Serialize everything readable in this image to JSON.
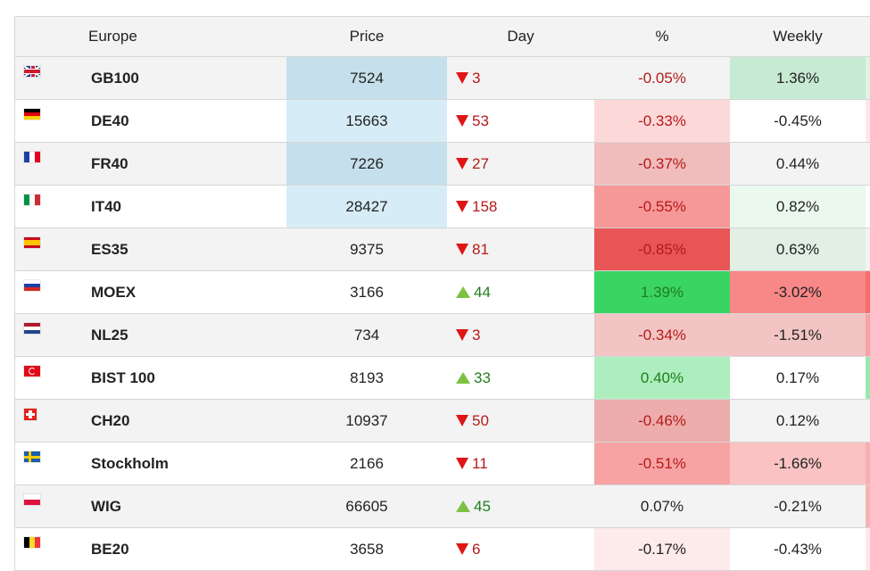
{
  "header": {
    "region": "Europe",
    "price": "Price",
    "day": "Day",
    "pct": "%",
    "weekly": "Weekly"
  },
  "rows": [
    {
      "flag": "uk-flag-icon",
      "name": "GB100",
      "price": "7524",
      "price_bg": "#c5e0ec",
      "dir": "down",
      "day": "3",
      "pct": "-0.05%",
      "pct_bg": "",
      "pct_class": "pct-down",
      "weekly": "1.36%",
      "weekly_bg": "#c7ead2",
      "extra_bg": "#e0f2e6"
    },
    {
      "flag": "germany-flag-icon",
      "name": "DE40",
      "price": "15663",
      "price_bg": "#d6edf7",
      "dir": "down",
      "day": "53",
      "pct": "-0.33%",
      "pct_bg": "#fdd8d8",
      "pct_class": "pct-down",
      "weekly": "-0.45%",
      "weekly_bg": "",
      "extra_bg": "#fde9e9"
    },
    {
      "flag": "france-flag-icon",
      "name": "FR40",
      "price": "7226",
      "price_bg": "#c5e0ec",
      "dir": "down",
      "day": "27",
      "pct": "-0.37%",
      "pct_bg": "#f0bcbc",
      "pct_class": "pct-down",
      "weekly": "0.44%",
      "weekly_bg": "",
      "extra_bg": ""
    },
    {
      "flag": "italy-flag-icon",
      "name": "IT40",
      "price": "28427",
      "price_bg": "#d6edf7",
      "dir": "down",
      "day": "158",
      "pct": "-0.55%",
      "pct_bg": "#f69898",
      "pct_class": "pct-down",
      "weekly": "0.82%",
      "weekly_bg": "#eaf8ee",
      "extra_bg": ""
    },
    {
      "flag": "spain-flag-icon",
      "name": "ES35",
      "price": "9375",
      "price_bg": "",
      "dir": "down",
      "day": "81",
      "pct": "-0.85%",
      "pct_bg": "#e85555",
      "pct_class": "pct-down",
      "weekly": "0.63%",
      "weekly_bg": "#e1efe4",
      "extra_bg": ""
    },
    {
      "flag": "russia-flag-icon",
      "name": "MOEX",
      "price": "3166",
      "price_bg": "",
      "dir": "up",
      "day": "44",
      "pct": "1.39%",
      "pct_bg": "#3ad462",
      "pct_class": "pct-up",
      "weekly": "-3.02%",
      "weekly_bg": "#f88888",
      "extra_bg": "#f46e6e"
    },
    {
      "flag": "netherlands-flag-icon",
      "name": "NL25",
      "price": "734",
      "price_bg": "",
      "dir": "down",
      "day": "3",
      "pct": "-0.34%",
      "pct_bg": "#f2c4c4",
      "pct_class": "pct-down",
      "weekly": "-1.51%",
      "weekly_bg": "#f2c4c4",
      "extra_bg": "#f4a4a4"
    },
    {
      "flag": "turkey-flag-icon",
      "name": "BIST 100",
      "price": "8193",
      "price_bg": "",
      "dir": "up",
      "day": "33",
      "pct": "0.40%",
      "pct_bg": "#aeeebe",
      "pct_class": "pct-up",
      "weekly": "0.17%",
      "weekly_bg": "",
      "extra_bg": "#9be8ae"
    },
    {
      "flag": "switzerland-flag-icon",
      "name": "CH20",
      "price": "10937",
      "price_bg": "",
      "dir": "down",
      "day": "50",
      "pct": "-0.46%",
      "pct_bg": "#eeadad",
      "pct_class": "pct-down",
      "weekly": "0.12%",
      "weekly_bg": "",
      "extra_bg": ""
    },
    {
      "flag": "sweden-flag-icon",
      "name": "Stockholm",
      "price": "2166",
      "price_bg": "",
      "dir": "down",
      "day": "11",
      "pct": "-0.51%",
      "pct_bg": "#f7a3a3",
      "pct_class": "pct-down",
      "weekly": "-1.66%",
      "weekly_bg": "#fac2c2",
      "extra_bg": "#f7b0b0"
    },
    {
      "flag": "poland-flag-icon",
      "name": "WIG",
      "price": "66605",
      "price_bg": "",
      "dir": "up",
      "day": "45",
      "pct": "0.07%",
      "pct_bg": "",
      "pct_class": "pct-neutral",
      "weekly": "-0.21%",
      "weekly_bg": "",
      "extra_bg": "#f4b4b4"
    },
    {
      "flag": "belgium-flag-icon",
      "name": "BE20",
      "price": "3658",
      "price_bg": "",
      "dir": "down",
      "day": "6",
      "pct": "-0.17%",
      "pct_bg": "#fdeaea",
      "pct_class": "pct-neutral",
      "weekly": "-0.43%",
      "weekly_bg": "",
      "extra_bg": "#fde8e8"
    }
  ],
  "flags": {
    "uk-flag-icon": {
      "dir": "uk",
      "colors": [
        "#1f3b87",
        "#ffffff",
        "#cf1b2b"
      ]
    },
    "germany-flag-icon": {
      "dir": "h",
      "colors": [
        "#000000",
        "#dd0000",
        "#ffce00"
      ]
    },
    "france-flag-icon": {
      "dir": "v",
      "colors": [
        "#1f3fa3",
        "#ffffff",
        "#e1001f"
      ]
    },
    "italy-flag-icon": {
      "dir": "v",
      "colors": [
        "#009246",
        "#ffffff",
        "#ce2b37"
      ]
    },
    "spain-flag-icon": {
      "dir": "spain",
      "colors": [
        "#c60b1e",
        "#ffc400",
        "#c60b1e"
      ]
    },
    "russia-flag-icon": {
      "dir": "h",
      "colors": [
        "#ffffff",
        "#1c3fa8",
        "#d52b1e"
      ]
    },
    "netherlands-flag-icon": {
      "dir": "h",
      "colors": [
        "#ae1c28",
        "#ffffff",
        "#21468b"
      ]
    },
    "turkey-flag-icon": {
      "dir": "solid",
      "colors": [
        "#e30a17"
      ]
    },
    "switzerland-flag-icon": {
      "dir": "swiss",
      "colors": [
        "#e3201b",
        "#ffffff"
      ]
    },
    "sweden-flag-icon": {
      "dir": "nordic",
      "colors": [
        "#1a5fa8",
        "#fecc02"
      ]
    },
    "poland-flag-icon": {
      "dir": "h",
      "colors": [
        "#ffffff",
        "#dc143c"
      ]
    },
    "belgium-flag-icon": {
      "dir": "v",
      "colors": [
        "#000000",
        "#fdda24",
        "#ef3340"
      ]
    }
  }
}
